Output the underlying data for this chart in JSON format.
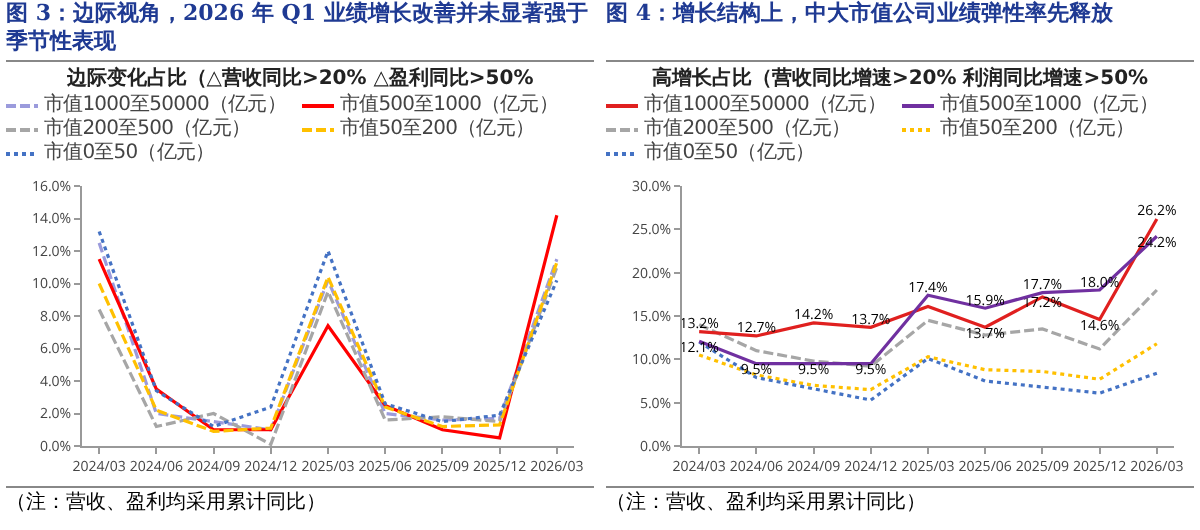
{
  "chart_data": [
    {
      "type": "line",
      "title": "图 3：边际视角，2026 年 Q1 业绩增长改善并未显著强于季节性表现",
      "subtitle": "边际变化占比（△营收同比>20%  △盈利同比>50%",
      "categories": [
        "2024/03",
        "2024/06",
        "2024/09",
        "2024/12",
        "2025/03",
        "2025/06",
        "2025/09",
        "2025/12",
        "2026/03"
      ],
      "series": [
        {
          "name": "市值1000至50000（亿元）",
          "color": "#9b9bdc",
          "line_style": "dashed",
          "values": [
            12.5,
            2.0,
            1.5,
            1.0,
            10.2,
            2.0,
            1.6,
            1.7,
            11.5
          ]
        },
        {
          "name": "市值500至1000（亿元）",
          "color": "#ff0000",
          "line_style": "solid",
          "values": [
            11.5,
            3.5,
            1.0,
            1.0,
            7.4,
            2.5,
            1.0,
            0.5,
            14.2
          ]
        },
        {
          "name": "市值200至500（亿元）",
          "color": "#a6a6a6",
          "line_style": "dashed",
          "values": [
            8.4,
            1.2,
            2.0,
            0.1,
            9.5,
            1.6,
            1.8,
            1.5,
            11.0
          ]
        },
        {
          "name": "市值50至200（亿元）",
          "color": "#ffc000",
          "line_style": "dashed",
          "values": [
            10.0,
            2.2,
            0.9,
            1.1,
            10.4,
            2.4,
            1.2,
            1.3,
            11.3
          ]
        },
        {
          "name": "市值0至50（亿元）",
          "color": "#4472c4",
          "line_style": "dotted",
          "values": [
            13.2,
            3.4,
            1.2,
            2.4,
            12.0,
            2.6,
            1.5,
            1.9,
            10.2
          ]
        }
      ],
      "ylim": [
        0,
        16
      ],
      "yticks": [
        {
          "value": 0,
          "label": "0.0%"
        },
        {
          "value": 2,
          "label": "2.0%"
        },
        {
          "value": 4,
          "label": "4.0%"
        },
        {
          "value": 6,
          "label": "6.0%"
        },
        {
          "value": 8,
          "label": "8.0%"
        },
        {
          "value": 10,
          "label": "10.0%"
        },
        {
          "value": 12,
          "label": "12.0%"
        },
        {
          "value": 14,
          "label": "14.0%"
        },
        {
          "value": 16,
          "label": "16.0%"
        }
      ],
      "grid": false,
      "legend": "top",
      "annotations": [
        "（注：营收、盈利均采用累计同比）"
      ]
    },
    {
      "type": "line",
      "title": "图 4：增长结构上，中大市值公司业绩弹性率先释放",
      "subtitle": "高增长占比（营收同比增速>20%  利润同比增速>50%",
      "categories": [
        "2024/03",
        "2024/06",
        "2024/09",
        "2024/12",
        "2025/03",
        "2025/06",
        "2025/09",
        "2025/12",
        "2026/03"
      ],
      "series": [
        {
          "name": "市值1000至50000（亿元）",
          "color": "#e0201f",
          "line_style": "solid",
          "values": [
            13.2,
            12.7,
            14.2,
            13.7,
            16.1,
            13.7,
            17.2,
            14.6,
            26.2
          ],
          "value_labels": [
            "13.2%",
            "12.7%",
            "14.2%",
            "13.7%",
            null,
            "13.7%",
            "17.2%",
            "14.6%",
            "26.2%"
          ]
        },
        {
          "name": "市值500至1000（亿元）",
          "color": "#7030a0",
          "line_style": "solid",
          "values": [
            12.1,
            9.5,
            9.5,
            9.5,
            17.4,
            15.9,
            17.7,
            18.0,
            24.2
          ],
          "value_labels": [
            "12.1%",
            "9.5%",
            "9.5%",
            "9.5%",
            "17.4%",
            "15.9%",
            "17.7%",
            "18.0%",
            "24.2%"
          ]
        },
        {
          "name": "市值200至500（亿元）",
          "color": "#a6a6a6",
          "line_style": "dashed",
          "values": [
            14.0,
            11.0,
            9.8,
            9.2,
            14.5,
            12.8,
            13.5,
            11.2,
            18.0
          ]
        },
        {
          "name": "市值50至200（亿元）",
          "color": "#ffc000",
          "line_style": "dotted",
          "values": [
            10.5,
            8.2,
            7.0,
            6.5,
            10.3,
            8.8,
            8.6,
            7.7,
            11.8
          ]
        },
        {
          "name": "市值0至50（亿元）",
          "color": "#4472c4",
          "line_style": "dotted",
          "values": [
            12.0,
            7.9,
            6.6,
            5.3,
            10.1,
            7.5,
            6.8,
            6.1,
            8.4
          ]
        }
      ],
      "ylim": [
        0,
        30
      ],
      "yticks": [
        {
          "value": 0,
          "label": "0.0%"
        },
        {
          "value": 5,
          "label": "5.0%"
        },
        {
          "value": 10,
          "label": "10.0%"
        },
        {
          "value": 15,
          "label": "15.0%"
        },
        {
          "value": 20,
          "label": "20.0%"
        },
        {
          "value": 25,
          "label": "25.0%"
        },
        {
          "value": 30,
          "label": "30.0%"
        }
      ],
      "grid": false,
      "legend": "top",
      "annotations": [
        "（注：营收、盈利均采用累计同比）"
      ]
    }
  ]
}
